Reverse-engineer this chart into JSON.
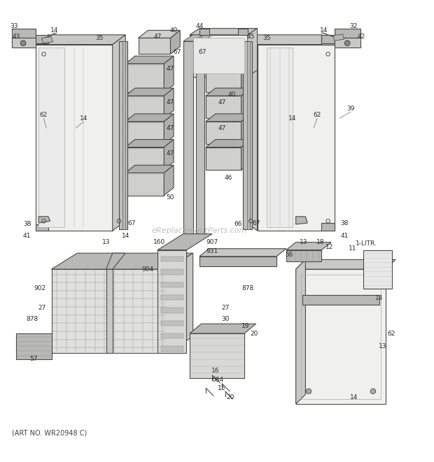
{
  "bg_color": "#ffffff",
  "line_color": "#4a4a4a",
  "label_color": "#2a2a2a",
  "figsize": [
    6.2,
    6.61
  ],
  "dpi": 100,
  "watermark": "eReplacementParts.com",
  "art_no": "(ART NO. WR20948 C)",
  "lw": 0.8,
  "fill_door": "#e8e8e6",
  "fill_door_edge": "#c8c8c6",
  "fill_bin": "#d0d0ce",
  "fill_bin_dark": "#b0b0ae",
  "fill_basket": "#d8d8d6",
  "fill_light": "#f0f0ee",
  "fill_rail": "#c0c0be",
  "fill_drawer": "#e4e4e2",
  "fill_gray": "#b8b8b6"
}
